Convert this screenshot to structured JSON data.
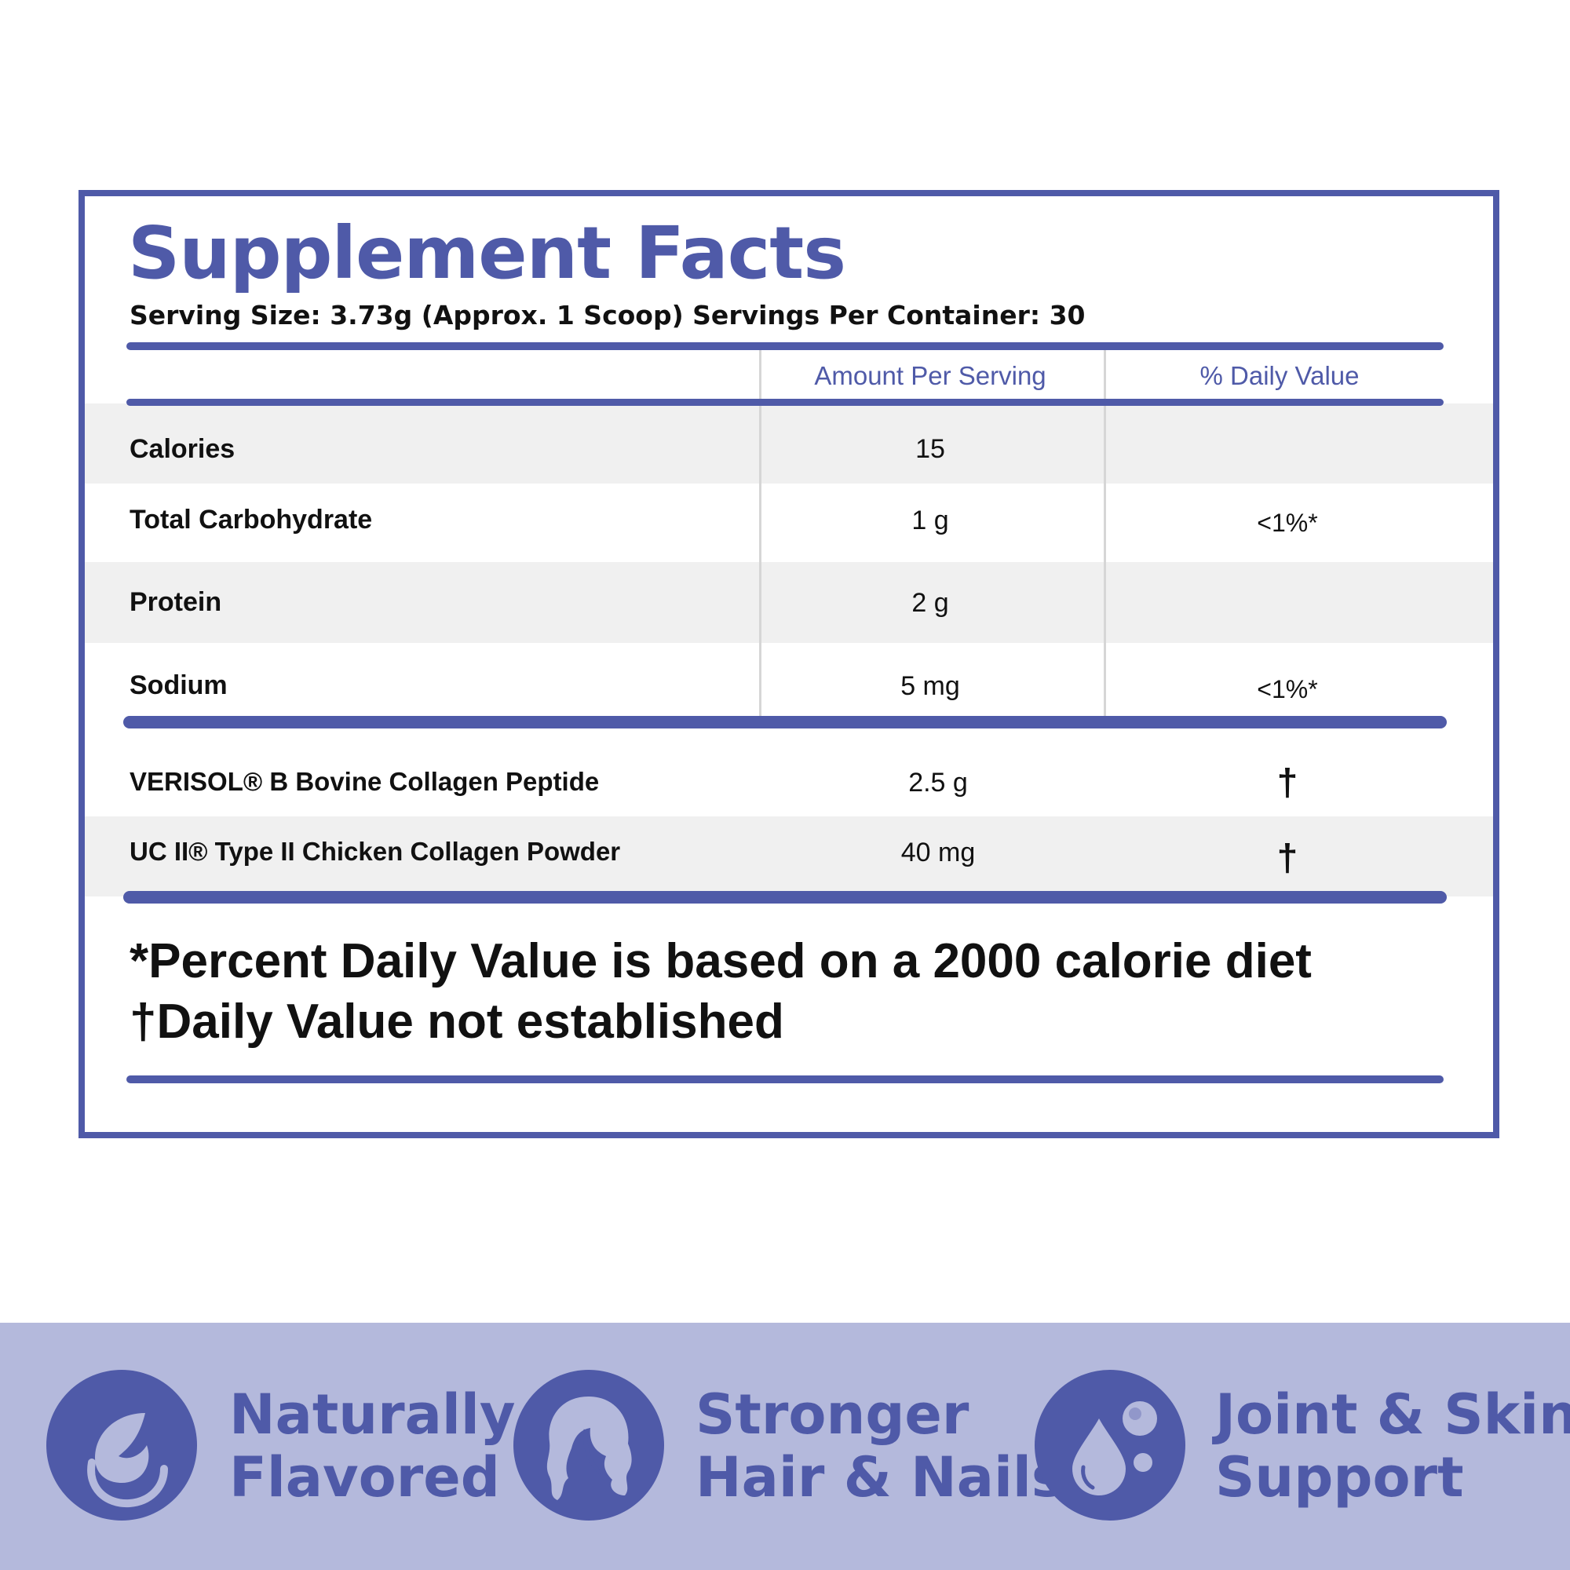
{
  "panel": {
    "title": "Supplement Facts",
    "serving_line": "Serving Size: 3.73g (Approx. 1 Scoop) Servings Per Container: 30",
    "columns": {
      "amount_header": "Amount Per Serving",
      "dv_header": "% Daily Value"
    },
    "nutrients": [
      {
        "label": "Calories",
        "amount": "15",
        "dv": ""
      },
      {
        "label": "Total Carbohydrate",
        "amount": "1 g",
        "dv": "<1%*"
      },
      {
        "label": "Protein",
        "amount": "2 g",
        "dv": ""
      },
      {
        "label": "Sodium",
        "amount": "5 mg",
        "dv": "<1%*"
      }
    ],
    "ingredients": [
      {
        "label": "VERISOL® B Bovine Collagen Peptide",
        "amount": "2.5 g",
        "dv": "†"
      },
      {
        "label": "UC II® Type II Chicken Collagen Powder",
        "amount": "40 mg",
        "dv": "†"
      }
    ],
    "footnotes": [
      "*Percent Daily Value is based on a 2000 calorie diet",
      "†Daily Value not established"
    ]
  },
  "features": [
    {
      "icon": "leaf-icon",
      "line1": "Naturally",
      "line2": "Flavored"
    },
    {
      "icon": "hair-icon",
      "line1": "Stronger",
      "line2": "Hair & Nails"
    },
    {
      "icon": "drop-icon",
      "line1": "Joint & Skin",
      "line2": "Support"
    }
  ],
  "colors": {
    "accent": "#4f5aa8",
    "band": "#b4b9dc",
    "row_shade": "#f0f0f0",
    "icon_light": "#b4b9dc"
  }
}
